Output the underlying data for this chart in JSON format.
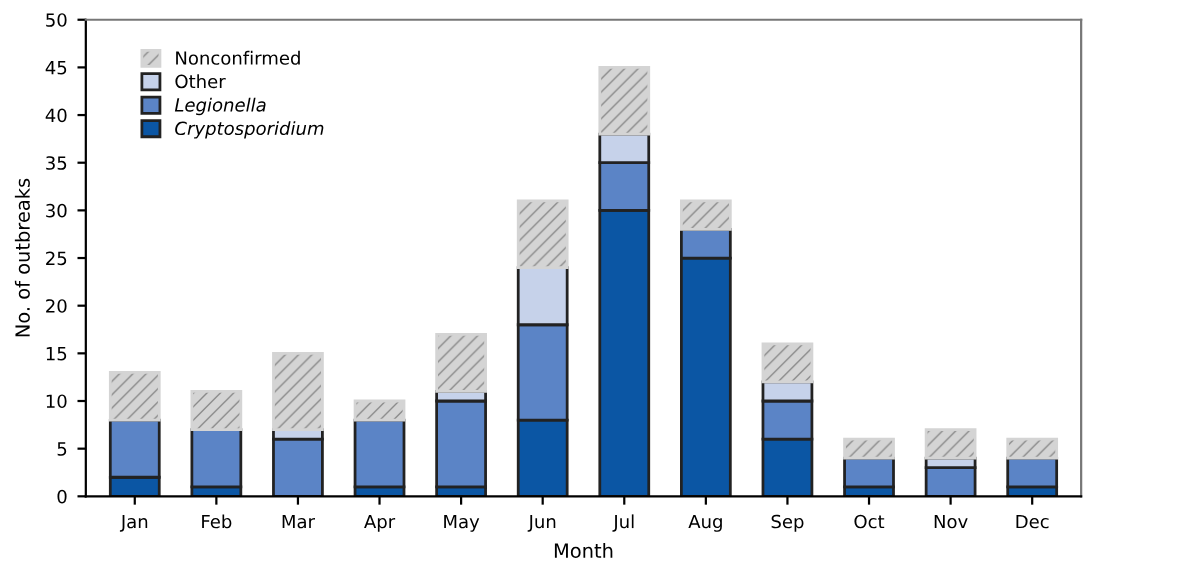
{
  "chart_data": {
    "type": "bar",
    "stacked": true,
    "xlabel": "Month",
    "ylabel": "No. of outbreaks",
    "categories": [
      "Jan",
      "Feb",
      "Mar",
      "Apr",
      "May",
      "Jun",
      "Jul",
      "Aug",
      "Sep",
      "Oct",
      "Nov",
      "Dec"
    ],
    "series": [
      {
        "name": "Cryptosporidium",
        "color": "#0b56a4",
        "values": [
          2,
          1,
          0,
          1,
          1,
          8,
          30,
          25,
          6,
          1,
          0,
          1
        ]
      },
      {
        "name": "Legionella",
        "color": "#5b84c6",
        "values": [
          6,
          6,
          6,
          7,
          9,
          10,
          5,
          3,
          4,
          3,
          3,
          3
        ]
      },
      {
        "name": "Other",
        "color": "#c6d2ea",
        "values": [
          0,
          0,
          1,
          0,
          1,
          6,
          3,
          0,
          2,
          0,
          1,
          0
        ]
      },
      {
        "name": "Nonconfirmed",
        "color": "#d4d4d4",
        "values": [
          5,
          4,
          8,
          2,
          6,
          7,
          7,
          3,
          4,
          2,
          3,
          2
        ]
      }
    ],
    "ylim": [
      0,
      50
    ],
    "yticks": [
      0,
      5,
      10,
      15,
      20,
      25,
      30,
      35,
      40,
      45,
      50
    ],
    "grid": false,
    "legend": "top left"
  }
}
